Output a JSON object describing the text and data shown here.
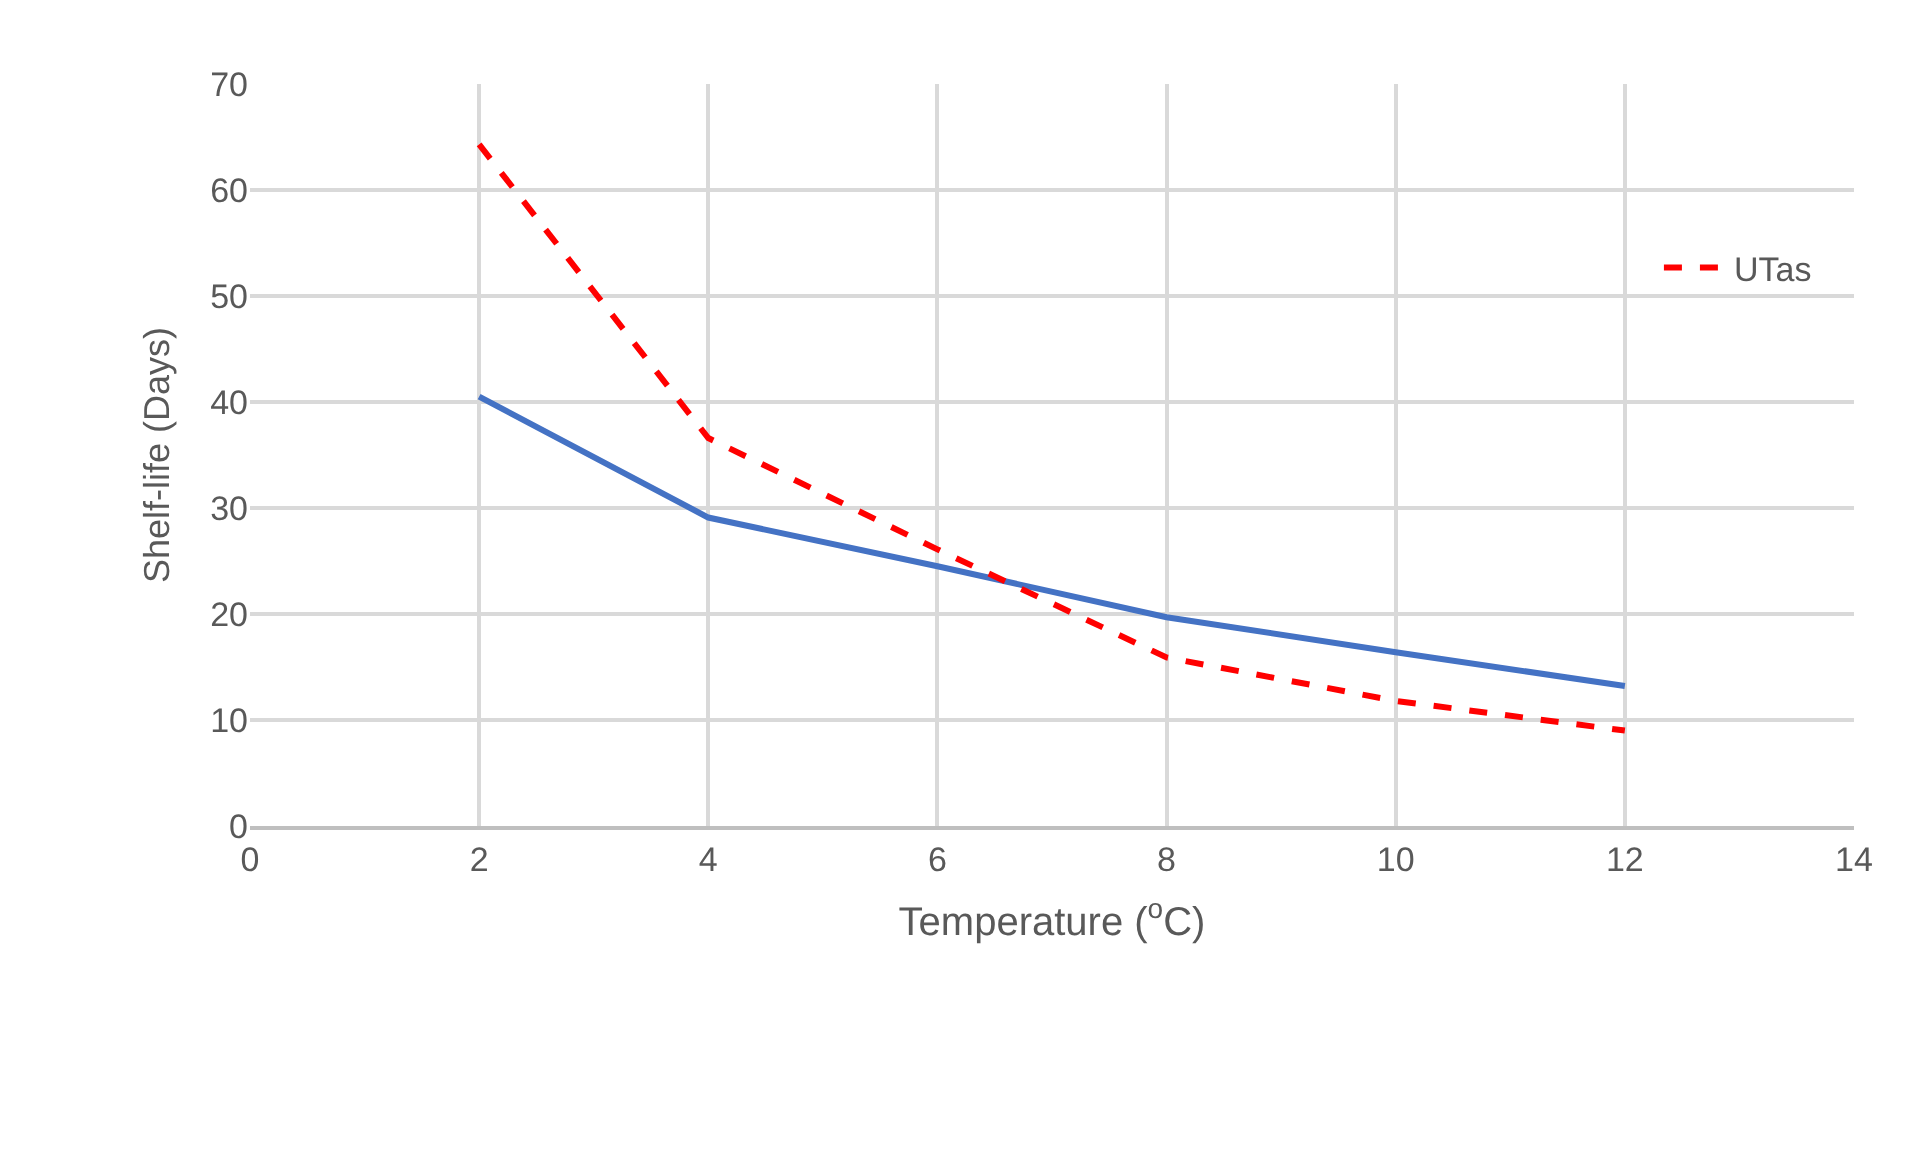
{
  "chart_data": {
    "type": "line",
    "xlabel": "Temperature ($^{o}$C)",
    "ylabel": "Shelf-life (Days)",
    "x": [
      2,
      4,
      6,
      8,
      10,
      12
    ],
    "series": [
      {
        "color": "#4472c4",
        "line_style": "solid",
        "values": [
          40.5,
          29.1,
          24.5,
          19.7,
          16.4,
          13.2
        ]
      },
      {
        "name": "UTas",
        "color": "#ff0000",
        "line_style": "dashed",
        "values": [
          64.3,
          36.6,
          26.1,
          15.9,
          11.8,
          9.0
        ]
      }
    ],
    "xlim": [
      0,
      14
    ],
    "xticks": [
      0,
      2,
      4,
      6,
      8,
      10,
      12,
      14
    ],
    "ylim": [
      0,
      70
    ],
    "yticks": [
      0,
      10,
      20,
      30,
      40,
      50,
      60,
      70
    ],
    "grid": true,
    "legend": "top right",
    "marker": "none"
  }
}
